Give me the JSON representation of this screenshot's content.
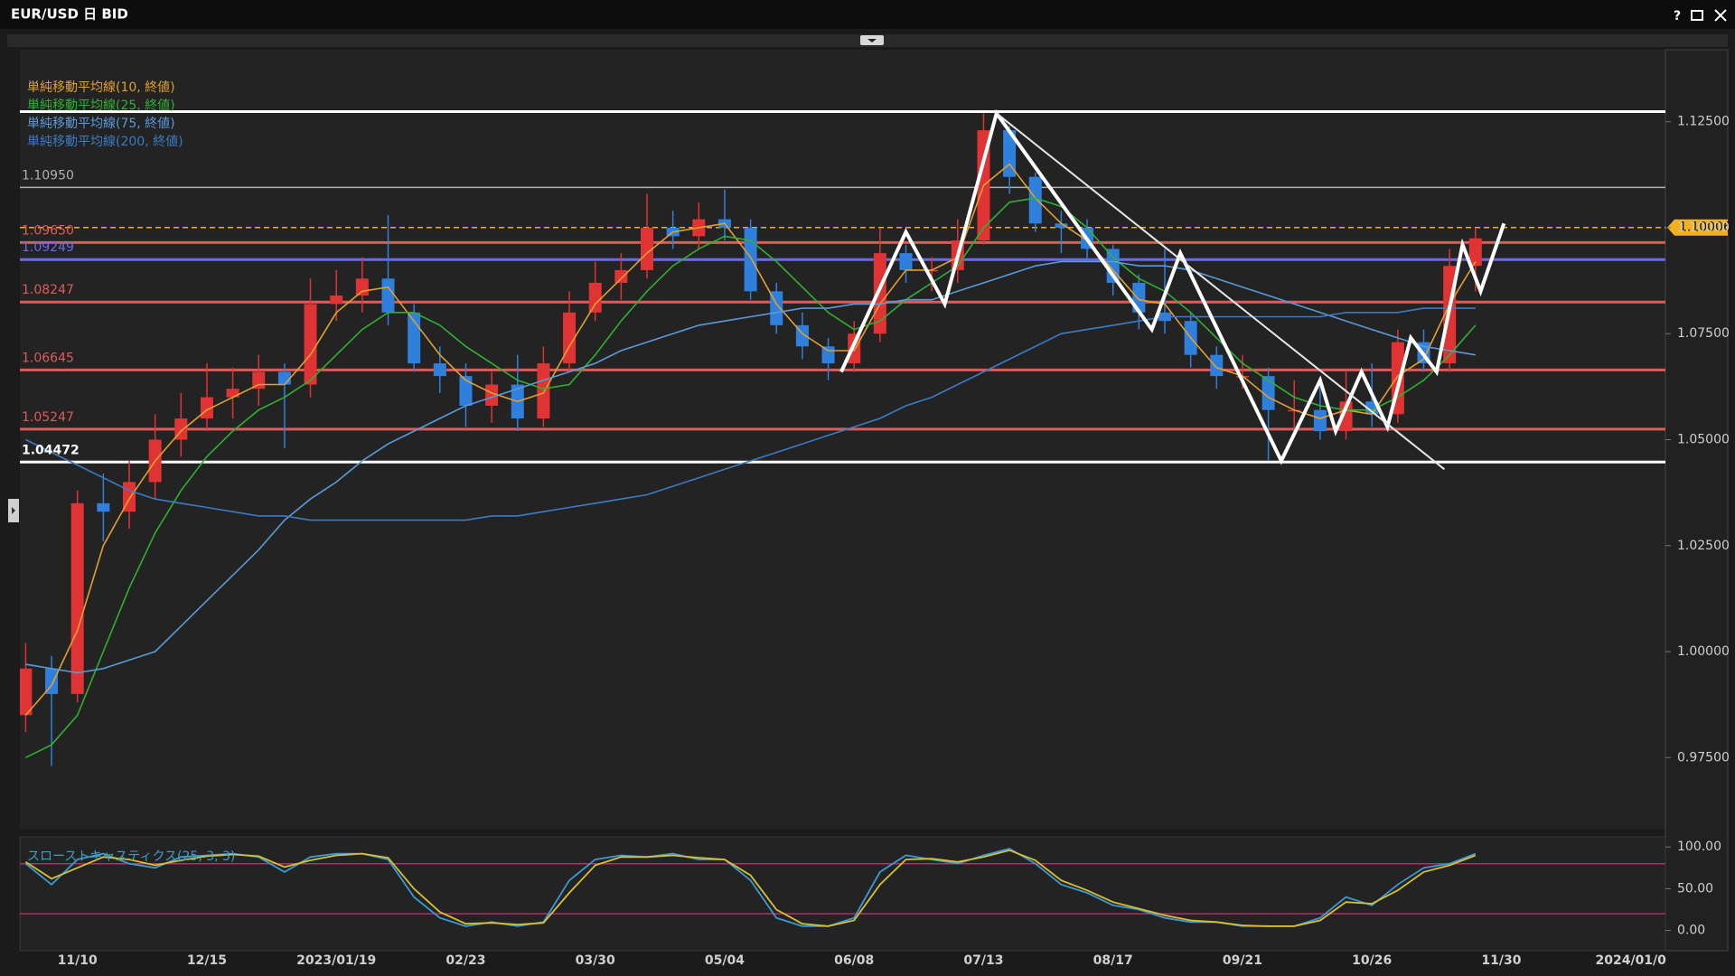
{
  "window": {
    "title": "EUR/USD 日 BID",
    "help": "?"
  },
  "chart_data": [
    {
      "type": "candlestick",
      "categories": [
        null,
        null,
        "11/10",
        null,
        null,
        null,
        null,
        "12/15",
        null,
        null,
        null,
        null,
        "2023/01/19",
        null,
        null,
        null,
        null,
        "02/23",
        null,
        null,
        null,
        null,
        "03/30",
        null,
        null,
        null,
        null,
        "05/04",
        null,
        null,
        null,
        null,
        "06/08",
        null,
        null,
        null,
        null,
        "07/13",
        null,
        null,
        null,
        null,
        "08/17",
        null,
        null,
        null,
        null,
        "09/21",
        null,
        null,
        null,
        null,
        "10/26",
        null,
        null,
        null,
        null,
        "11/30",
        null,
        null,
        null,
        null,
        "2024/01/0"
      ],
      "open": [
        0.985,
        0.996,
        0.99,
        1.035,
        1.033,
        1.04,
        1.05,
        1.055,
        1.06,
        1.062,
        1.066,
        1.063,
        1.082,
        1.084,
        1.088,
        1.08,
        1.068,
        1.065,
        1.058,
        1.063,
        1.055,
        1.068,
        1.08,
        1.087,
        1.09,
        1.1,
        1.098,
        1.102,
        1.1,
        1.085,
        1.077,
        1.072,
        1.068,
        1.075,
        1.094,
        1.09,
        1.09,
        1.097,
        1.123,
        1.112,
        1.101,
        1.1,
        1.095,
        1.087,
        1.08,
        1.078,
        1.07,
        1.065,
        1.065,
        1.057,
        1.057,
        1.052,
        1.059,
        1.056,
        1.073,
        1.068,
        1.091,
        null,
        null,
        null,
        null,
        null,
        null
      ],
      "high": [
        1.002,
        0.999,
        1.038,
        1.042,
        1.045,
        1.056,
        1.061,
        1.068,
        1.067,
        1.07,
        1.068,
        1.088,
        1.09,
        1.093,
        1.103,
        1.082,
        1.072,
        1.068,
        1.066,
        1.07,
        1.072,
        1.085,
        1.092,
        1.094,
        1.108,
        1.104,
        1.106,
        1.109,
        1.102,
        1.087,
        1.08,
        1.074,
        1.078,
        1.1,
        1.096,
        1.093,
        1.102,
        1.127,
        1.124,
        1.113,
        1.104,
        1.102,
        1.096,
        1.089,
        1.095,
        1.08,
        1.072,
        1.07,
        1.067,
        1.064,
        1.064,
        1.066,
        1.068,
        1.076,
        1.076,
        1.095,
        1.1,
        null,
        null,
        null,
        null,
        null,
        null
      ],
      "low": [
        0.981,
        0.973,
        0.988,
        1.026,
        1.029,
        1.036,
        1.046,
        1.052,
        1.055,
        1.058,
        1.048,
        1.06,
        1.078,
        1.08,
        1.077,
        1.066,
        1.061,
        1.053,
        1.054,
        1.052,
        1.053,
        1.066,
        1.078,
        1.083,
        1.088,
        1.095,
        1.095,
        1.097,
        1.083,
        1.075,
        1.069,
        1.064,
        1.066,
        1.073,
        1.087,
        1.085,
        1.087,
        1.096,
        1.108,
        1.099,
        1.094,
        1.092,
        1.084,
        1.076,
        1.075,
        1.067,
        1.062,
        1.062,
        1.045,
        1.052,
        1.05,
        1.05,
        1.053,
        1.054,
        1.066,
        1.066,
        1.085,
        null,
        null,
        null,
        null,
        null,
        null
      ],
      "close": [
        0.996,
        0.99,
        1.035,
        1.033,
        1.04,
        1.05,
        1.055,
        1.06,
        1.062,
        1.066,
        1.063,
        1.082,
        1.084,
        1.088,
        1.08,
        1.068,
        1.065,
        1.058,
        1.063,
        1.055,
        1.068,
        1.08,
        1.087,
        1.09,
        1.1,
        1.098,
        1.102,
        1.1,
        1.085,
        1.077,
        1.072,
        1.068,
        1.075,
        1.094,
        1.09,
        1.09,
        1.097,
        1.123,
        1.112,
        1.101,
        1.1,
        1.095,
        1.087,
        1.08,
        1.078,
        1.07,
        1.065,
        1.065,
        1.057,
        1.057,
        1.052,
        1.059,
        1.056,
        1.073,
        1.068,
        1.091,
        1.0975,
        null,
        null,
        null,
        null,
        null,
        null
      ],
      "up_color": "#e03434",
      "down_color": "#2f80dc",
      "series": [
        {
          "name": "単純移動平均線(10, 終値)",
          "color": "#e0a030",
          "values": [
            0.985,
            0.992,
            1.005,
            1.025,
            1.036,
            1.045,
            1.052,
            1.057,
            1.06,
            1.063,
            1.063,
            1.07,
            1.08,
            1.085,
            1.086,
            1.078,
            1.07,
            1.064,
            1.061,
            1.059,
            1.061,
            1.072,
            1.082,
            1.088,
            1.094,
            1.099,
            1.1,
            1.101,
            1.093,
            1.082,
            1.075,
            1.071,
            1.071,
            1.082,
            1.09,
            1.09,
            1.093,
            1.11,
            1.115,
            1.107,
            1.101,
            1.097,
            1.09,
            1.083,
            1.082,
            1.074,
            1.067,
            1.065,
            1.06,
            1.057,
            1.055,
            1.057,
            1.056,
            1.065,
            1.069,
            1.082,
            1.092,
            null,
            null,
            null,
            null,
            null,
            null
          ]
        },
        {
          "name": "単純移動平均線(25, 終値)",
          "color": "#30b030",
          "values": [
            0.975,
            0.978,
            0.985,
            1.0,
            1.015,
            1.028,
            1.038,
            1.046,
            1.052,
            1.057,
            1.06,
            1.064,
            1.07,
            1.076,
            1.08,
            1.08,
            1.077,
            1.072,
            1.068,
            1.064,
            1.062,
            1.063,
            1.07,
            1.078,
            1.085,
            1.091,
            1.095,
            1.098,
            1.097,
            1.092,
            1.086,
            1.08,
            1.076,
            1.078,
            1.083,
            1.087,
            1.091,
            1.1,
            1.106,
            1.107,
            1.105,
            1.1,
            1.093,
            1.088,
            1.085,
            1.08,
            1.074,
            1.068,
            1.064,
            1.06,
            1.058,
            1.057,
            1.057,
            1.06,
            1.064,
            1.07,
            1.077,
            null,
            null,
            null,
            null,
            null,
            null
          ]
        },
        {
          "name": "単純移動平均線(75, 終値)",
          "color": "#5a9ad8",
          "values": [
            0.997,
            0.996,
            0.995,
            0.996,
            0.998,
            1.0,
            1.006,
            1.012,
            1.018,
            1.024,
            1.031,
            1.036,
            1.04,
            1.045,
            1.049,
            1.052,
            1.055,
            1.058,
            1.06,
            1.062,
            1.064,
            1.066,
            1.068,
            1.071,
            1.073,
            1.075,
            1.077,
            1.078,
            1.079,
            1.08,
            1.081,
            1.081,
            1.082,
            1.082,
            1.083,
            1.083,
            1.085,
            1.087,
            1.089,
            1.091,
            1.092,
            1.092,
            1.092,
            1.091,
            1.091,
            1.09,
            1.088,
            1.086,
            1.084,
            1.082,
            1.08,
            1.078,
            1.076,
            1.074,
            1.072,
            1.071,
            1.07,
            null,
            null,
            null,
            null,
            null,
            null
          ]
        },
        {
          "name": "単純移動平均線(200, 終値)",
          "color": "#3a7cc4",
          "values": [
            1.05,
            1.047,
            1.044,
            1.041,
            1.038,
            1.036,
            1.035,
            1.034,
            1.033,
            1.032,
            1.032,
            1.031,
            1.031,
            1.031,
            1.031,
            1.031,
            1.031,
            1.031,
            1.032,
            1.032,
            1.033,
            1.034,
            1.035,
            1.036,
            1.037,
            1.039,
            1.041,
            1.043,
            1.045,
            1.047,
            1.049,
            1.051,
            1.053,
            1.055,
            1.058,
            1.06,
            1.063,
            1.066,
            1.069,
            1.072,
            1.075,
            1.076,
            1.077,
            1.078,
            1.079,
            1.079,
            1.079,
            1.079,
            1.079,
            1.079,
            1.079,
            1.08,
            1.08,
            1.08,
            1.081,
            1.081,
            1.081,
            null,
            null,
            null,
            null,
            null,
            null
          ]
        }
      ],
      "ylim": [
        0.958,
        1.142
      ],
      "yticks": [
        {
          "value": 1.125,
          "label": "1.12500"
        },
        {
          "value": 1.1,
          "label": "1.10000"
        },
        {
          "value": 1.075,
          "label": "1.07500"
        },
        {
          "value": 1.05,
          "label": "1.05000"
        },
        {
          "value": 1.025,
          "label": "1.02500"
        },
        {
          "value": 1.0,
          "label": "1.00000"
        },
        {
          "value": 0.975,
          "label": "0.97500"
        }
      ],
      "levels": [
        {
          "value": 1.1274,
          "color": "#ffffff"
        },
        {
          "value": 1.1095,
          "label": "1.10950",
          "color": "#b0b0b0"
        },
        {
          "value": 1.0965,
          "label": "1.09650",
          "color": "#e05a5a"
        },
        {
          "value": 1.09249,
          "label": "1.09249",
          "color": "#6a6af0"
        },
        {
          "value": 1.08247,
          "label": "1.08247",
          "color": "#e05a5a"
        },
        {
          "value": 1.06645,
          "label": "1.06645",
          "color": "#e05a5a"
        },
        {
          "value": 1.05247,
          "label": "1.05247",
          "color": "#e05a5a"
        },
        {
          "value": 1.04472,
          "label": "1.04472",
          "color": "#ffffff"
        }
      ],
      "current": {
        "value": 1.10006,
        "label": "1.10006",
        "color": "#f2b020"
      },
      "annotations": [
        {
          "color": "#ffffff",
          "points": [
            [
              31.5,
              1.066
            ],
            [
              34,
              1.099
            ],
            [
              35.5,
              1.082
            ],
            [
              37.5,
              1.127
            ],
            [
              43.5,
              1.076
            ],
            [
              44.6,
              1.094
            ],
            [
              48.5,
              1.045
            ],
            [
              50,
              1.064
            ],
            [
              50.6,
              1.052
            ],
            [
              51.6,
              1.066
            ],
            [
              52.6,
              1.053
            ],
            [
              53.5,
              1.074
            ],
            [
              54.5,
              1.066
            ],
            [
              55.5,
              1.096
            ],
            [
              56.2,
              1.085
            ],
            [
              57.1,
              1.101
            ]
          ]
        },
        {
          "color": "#e8e8e8",
          "points": [
            [
              37.5,
              1.127
            ],
            [
              54.8,
              1.043
            ]
          ]
        }
      ]
    },
    {
      "type": "line",
      "title": "スローストキャスティクス(25, 3, 3)",
      "series": [
        {
          "color": "#3a9ad9",
          "values": [
            80,
            55,
            85,
            92,
            80,
            75,
            88,
            90,
            92,
            88,
            70,
            88,
            92,
            92,
            85,
            40,
            15,
            5,
            10,
            5,
            10,
            60,
            85,
            90,
            88,
            92,
            85,
            85,
            60,
            15,
            5,
            5,
            15,
            70,
            90,
            85,
            80,
            90,
            98,
            80,
            55,
            45,
            30,
            25,
            15,
            10,
            10,
            5,
            5,
            5,
            15,
            40,
            30,
            55,
            75,
            80,
            92,
            null,
            null,
            null,
            null,
            null,
            null
          ]
        },
        {
          "color": "#d8c030",
          "values": [
            82,
            62,
            75,
            88,
            85,
            78,
            84,
            89,
            91,
            89,
            76,
            84,
            90,
            92,
            87,
            50,
            22,
            8,
            9,
            7,
            9,
            45,
            78,
            88,
            88,
            90,
            87,
            85,
            66,
            25,
            8,
            5,
            12,
            55,
            85,
            86,
            82,
            88,
            96,
            84,
            60,
            48,
            34,
            26,
            18,
            12,
            10,
            6,
            5,
            5,
            12,
            34,
            32,
            48,
            70,
            78,
            90,
            null,
            null,
            null,
            null,
            null,
            null
          ]
        }
      ],
      "ylim": [
        -20,
        110
      ],
      "yticks": [
        {
          "value": 100,
          "label": "100.00"
        },
        {
          "value": 50,
          "label": "50.00"
        },
        {
          "value": 0,
          "label": "0.00"
        }
      ],
      "reference_lines": [
        {
          "value": 80,
          "color": "#b0306a"
        },
        {
          "value": 20,
          "color": "#b0306a"
        }
      ]
    }
  ]
}
